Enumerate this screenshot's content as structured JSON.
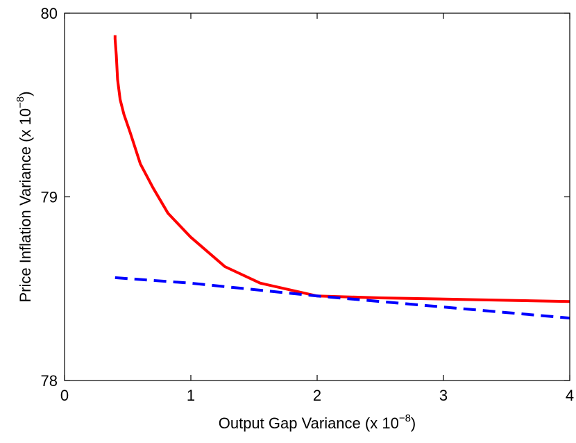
{
  "chart_data": {
    "type": "line",
    "title": "",
    "xlabel": "Output Gap Variance (x 10",
    "xlabel_exponent": "−8",
    "xlabel_suffix": ")",
    "ylabel": "Price Inflation Variance (x 10",
    "ylabel_exponent": "−8",
    "ylabel_suffix": ")",
    "xlim": [
      0,
      4
    ],
    "ylim": [
      78,
      80
    ],
    "xticks": [
      0,
      1,
      2,
      3,
      4
    ],
    "xtick_labels": [
      "0",
      "1",
      "2",
      "3",
      "4"
    ],
    "yticks": [
      78,
      79,
      80
    ],
    "ytick_labels": [
      "78",
      "79",
      "80"
    ],
    "grid": false,
    "legend": "none",
    "series": [
      {
        "style": "solid",
        "color": "#ff0000",
        "x": [
          0.4,
          0.4,
          0.41,
          0.42,
          0.44,
          0.47,
          0.52,
          0.6,
          0.7,
          0.82,
          1.0,
          1.27,
          1.55,
          2.0,
          2.5,
          3.25,
          4.0
        ],
        "y": [
          79.88,
          79.86,
          79.77,
          79.64,
          79.53,
          79.45,
          79.35,
          79.18,
          79.05,
          78.91,
          78.78,
          78.62,
          78.53,
          78.46,
          78.45,
          78.44,
          78.43
        ]
      },
      {
        "style": "dashed",
        "color": "#0000ff",
        "x": [
          0.4,
          1.0,
          2.0,
          3.0,
          4.0
        ],
        "y": [
          78.56,
          78.53,
          78.46,
          78.4,
          78.34
        ]
      }
    ]
  }
}
